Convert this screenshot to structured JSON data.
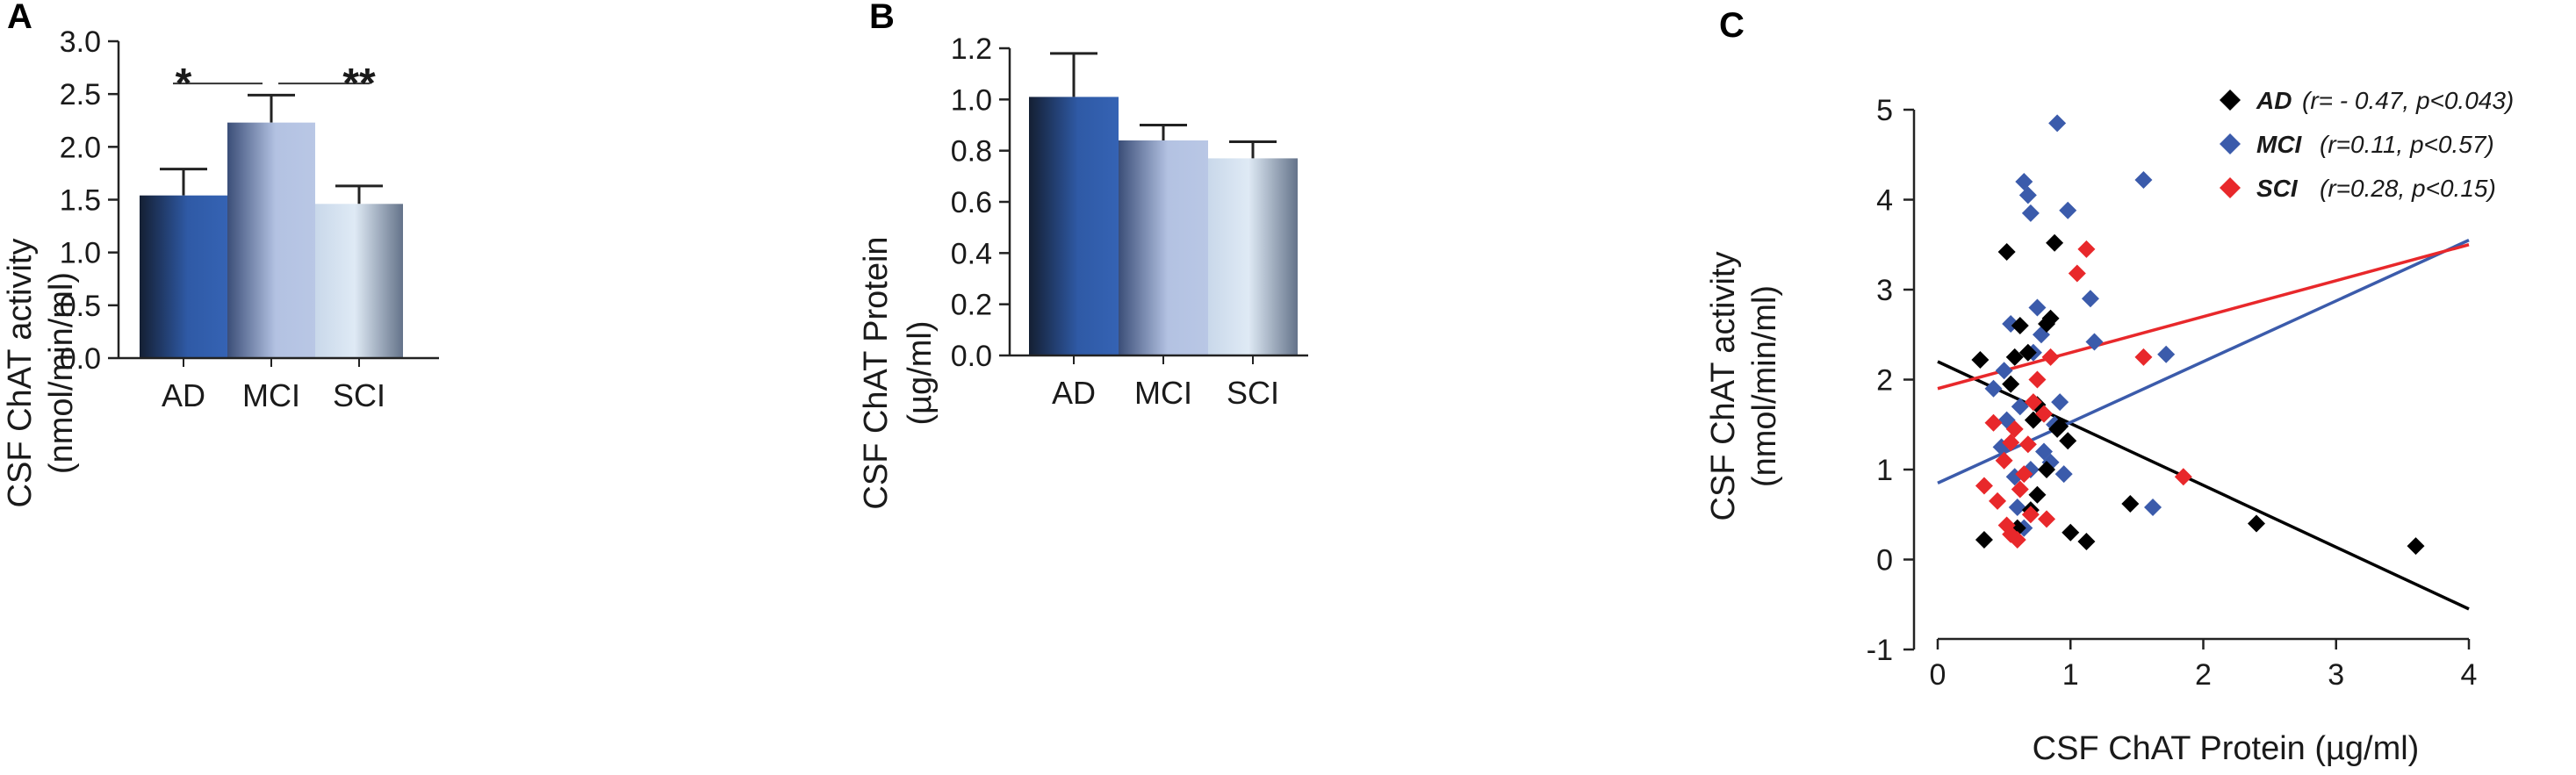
{
  "chart_data": [
    {
      "panel": "A",
      "type": "bar",
      "categories": [
        "AD",
        "MCI",
        "SCI"
      ],
      "values": [
        1.54,
        2.23,
        1.46
      ],
      "errors": [
        0.25,
        0.26,
        0.17
      ],
      "ylabel_line1": "CSF ChAT activity",
      "ylabel_line2": "(nmol/min/ml)",
      "ylim": [
        0,
        3
      ],
      "yticks": [
        "0.0",
        "0.5",
        "1.0",
        "1.5",
        "2.0",
        "2.5",
        "3.0"
      ],
      "significance": [
        {
          "between": [
            "AD",
            "MCI"
          ],
          "label": "*"
        },
        {
          "between": [
            "MCI",
            "SCI"
          ],
          "label": "**"
        }
      ]
    },
    {
      "panel": "B",
      "type": "bar",
      "categories": [
        "AD",
        "MCI",
        "SCI"
      ],
      "values": [
        1.01,
        0.84,
        0.77
      ],
      "errors": [
        0.17,
        0.06,
        0.065
      ],
      "ylabel_line1": "CSF ChAT Protein",
      "ylabel_line2": "(µg/ml)",
      "ylim": [
        0,
        1.2
      ],
      "yticks": [
        "0.0",
        "0.2",
        "0.4",
        "0.6",
        "0.8",
        "1.0",
        "1.2"
      ]
    },
    {
      "panel": "C",
      "type": "scatter",
      "xlabel": "CSF ChAT Protein  (µg/ml)",
      "ylabel_line1": "CSF ChAT activity",
      "ylabel_line2": "(nmol/min/ml)",
      "xlim": [
        0,
        4
      ],
      "ylim": [
        -1,
        5
      ],
      "xticks": [
        "0",
        "1",
        "2",
        "3",
        "4"
      ],
      "yticks": [
        "-1",
        "0",
        "1",
        "2",
        "3",
        "4",
        "5"
      ],
      "series": [
        {
          "name": "AD",
          "stat": "(r= - 0.47, p<0.043)",
          "color": "#000000",
          "points": [
            [
              0.32,
              2.22
            ],
            [
              0.52,
              3.42
            ],
            [
              0.55,
              1.95
            ],
            [
              0.58,
              2.25
            ],
            [
              0.62,
              2.6
            ],
            [
              0.68,
              2.3
            ],
            [
              0.72,
              1.55
            ],
            [
              0.75,
              1.72
            ],
            [
              0.8,
              1.62
            ],
            [
              0.82,
              2.62
            ],
            [
              0.85,
              2.68
            ],
            [
              0.88,
              3.52
            ],
            [
              0.9,
              1.45
            ],
            [
              0.92,
              1.48
            ],
            [
              0.98,
              1.32
            ],
            [
              0.7,
              0.55
            ],
            [
              0.6,
              0.35
            ],
            [
              0.75,
              0.72
            ],
            [
              0.82,
              1.0
            ],
            [
              0.35,
              0.22
            ],
            [
              1.0,
              0.3
            ],
            [
              1.12,
              0.2
            ],
            [
              1.45,
              0.62
            ],
            [
              2.4,
              0.4
            ],
            [
              3.6,
              0.15
            ]
          ],
          "line": [
            [
              0,
              2.2
            ],
            [
              4,
              -0.55
            ]
          ]
        },
        {
          "name": "MCI",
          "stat": "(r=0.11, p<0.57)",
          "color": "#3b5bab",
          "points": [
            [
              0.42,
              1.9
            ],
            [
              0.48,
              1.25
            ],
            [
              0.52,
              1.55
            ],
            [
              0.55,
              2.62
            ],
            [
              0.58,
              0.92
            ],
            [
              0.6,
              0.58
            ],
            [
              0.62,
              1.7
            ],
            [
              0.65,
              4.2
            ],
            [
              0.68,
              4.05
            ],
            [
              0.7,
              3.85
            ],
            [
              0.72,
              2.3
            ],
            [
              0.75,
              2.8
            ],
            [
              0.78,
              2.5
            ],
            [
              0.8,
              1.2
            ],
            [
              0.85,
              1.08
            ],
            [
              0.88,
              1.5
            ],
            [
              0.92,
              1.75
            ],
            [
              0.95,
              0.95
            ],
            [
              0.65,
              0.35
            ],
            [
              0.98,
              3.88
            ],
            [
              0.9,
              4.85
            ],
            [
              1.15,
              2.9
            ],
            [
              1.18,
              2.42
            ],
            [
              1.55,
              4.22
            ],
            [
              1.72,
              2.28
            ],
            [
              1.62,
              0.58
            ],
            [
              0.5,
              2.1
            ],
            [
              0.7,
              1.0
            ]
          ],
          "line": [
            [
              0,
              0.85
            ],
            [
              4,
              3.55
            ]
          ]
        },
        {
          "name": "SCI",
          "stat": "(r=0.28, p<0.15)",
          "color": "#e8282b",
          "points": [
            [
              0.35,
              0.82
            ],
            [
              0.42,
              1.52
            ],
            [
              0.45,
              0.65
            ],
            [
              0.5,
              1.1
            ],
            [
              0.52,
              0.38
            ],
            [
              0.55,
              1.3
            ],
            [
              0.58,
              1.45
            ],
            [
              0.6,
              0.22
            ],
            [
              0.62,
              0.78
            ],
            [
              0.65,
              0.95
            ],
            [
              0.68,
              1.28
            ],
            [
              0.72,
              1.75
            ],
            [
              0.75,
              2.0
            ],
            [
              0.8,
              1.62
            ],
            [
              0.82,
              0.45
            ],
            [
              0.85,
              2.25
            ],
            [
              1.05,
              3.18
            ],
            [
              1.12,
              3.45
            ],
            [
              1.55,
              2.25
            ],
            [
              1.85,
              0.92
            ],
            [
              0.55,
              0.28
            ],
            [
              0.7,
              0.5
            ]
          ],
          "line": [
            [
              0,
              1.9
            ],
            [
              4,
              3.5
            ]
          ]
        }
      ]
    }
  ]
}
